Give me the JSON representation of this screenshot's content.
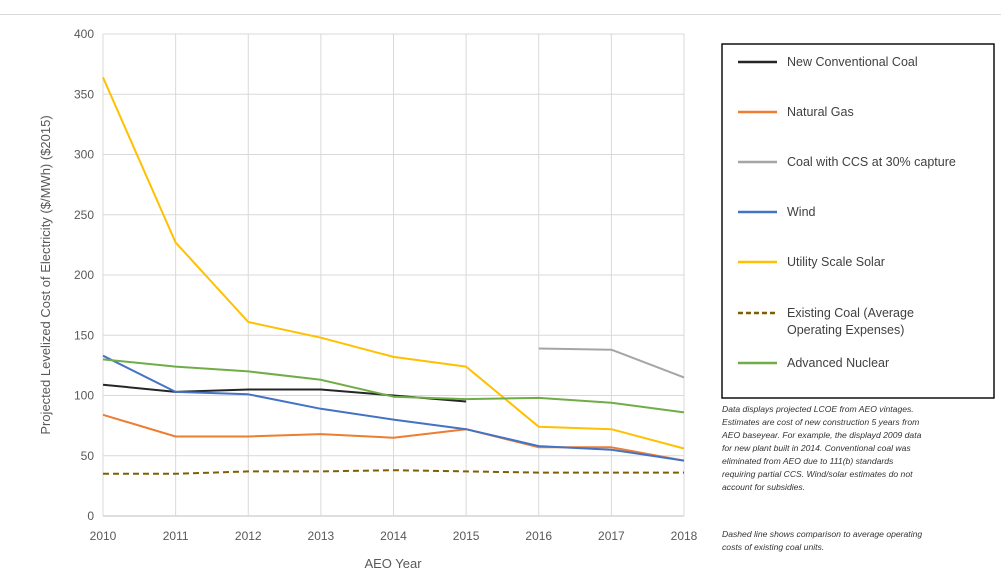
{
  "chart_data": {
    "type": "line",
    "title": "",
    "xlabel": "AEO Year",
    "ylabel": "Projected Levelized Cost of Electricity ($/MWh) ($2015)",
    "x": [
      2010,
      2011,
      2012,
      2013,
      2014,
      2015,
      2016,
      2017,
      2018
    ],
    "x_ticks": [
      "2010",
      "2011",
      "2012",
      "2013",
      "2014",
      "2015",
      "2016",
      "2017",
      "2018"
    ],
    "y_ticks": [
      "0",
      "50",
      "100",
      "150",
      "200",
      "250",
      "300",
      "350",
      "400"
    ],
    "ylim": [
      0,
      400
    ],
    "grid": true,
    "legend_position": "right",
    "series": [
      {
        "name": "New Conventional Coal",
        "color": "#262626",
        "dashed": false,
        "values": [
          109,
          103,
          105,
          105,
          100,
          95,
          null,
          null,
          null
        ]
      },
      {
        "name": "Natural Gas",
        "color": "#ed7d31",
        "dashed": false,
        "values": [
          84,
          66,
          66,
          68,
          65,
          72,
          57,
          57,
          46
        ]
      },
      {
        "name": "Coal with CCS at 30% capture",
        "color": "#a5a5a5",
        "dashed": false,
        "values": [
          null,
          null,
          null,
          null,
          null,
          null,
          139,
          138,
          115
        ]
      },
      {
        "name": "Wind",
        "color": "#4472c4",
        "dashed": false,
        "values": [
          133,
          103,
          101,
          89,
          80,
          72,
          58,
          55,
          46
        ]
      },
      {
        "name": "Utility Scale Solar",
        "color": "#ffc000",
        "dashed": false,
        "values": [
          364,
          227,
          161,
          148,
          132,
          124,
          74,
          72,
          56
        ]
      },
      {
        "name": "Existing Coal (Average Operating Expenses)",
        "legend_lines": [
          "Existing Coal (Average",
          "Operating Expenses)"
        ],
        "color": "#7f6000",
        "dashed": true,
        "values": [
          35,
          35,
          37,
          37,
          38,
          37,
          36,
          36,
          36
        ]
      },
      {
        "name": "Advanced Nuclear",
        "color": "#70ad47",
        "dashed": false,
        "values": [
          130,
          124,
          120,
          113,
          99,
          97,
          98,
          94,
          86
        ]
      }
    ],
    "annotations": [
      [
        "Data displays projected LCOE from AEO vintages.",
        "Estimates are cost of new construction 5 years from",
        "AEO baseyear. For example, the displayd 2009 data",
        "for new plant built in 2014. Conventional coal was",
        "eliminated from AEO due to 111(b) standards",
        "requiring partial CCS. Wind/solar estimates do not",
        "account for subsidies."
      ],
      [
        "Dashed line shows comparison to average operating",
        "costs of existing coal units."
      ]
    ]
  }
}
